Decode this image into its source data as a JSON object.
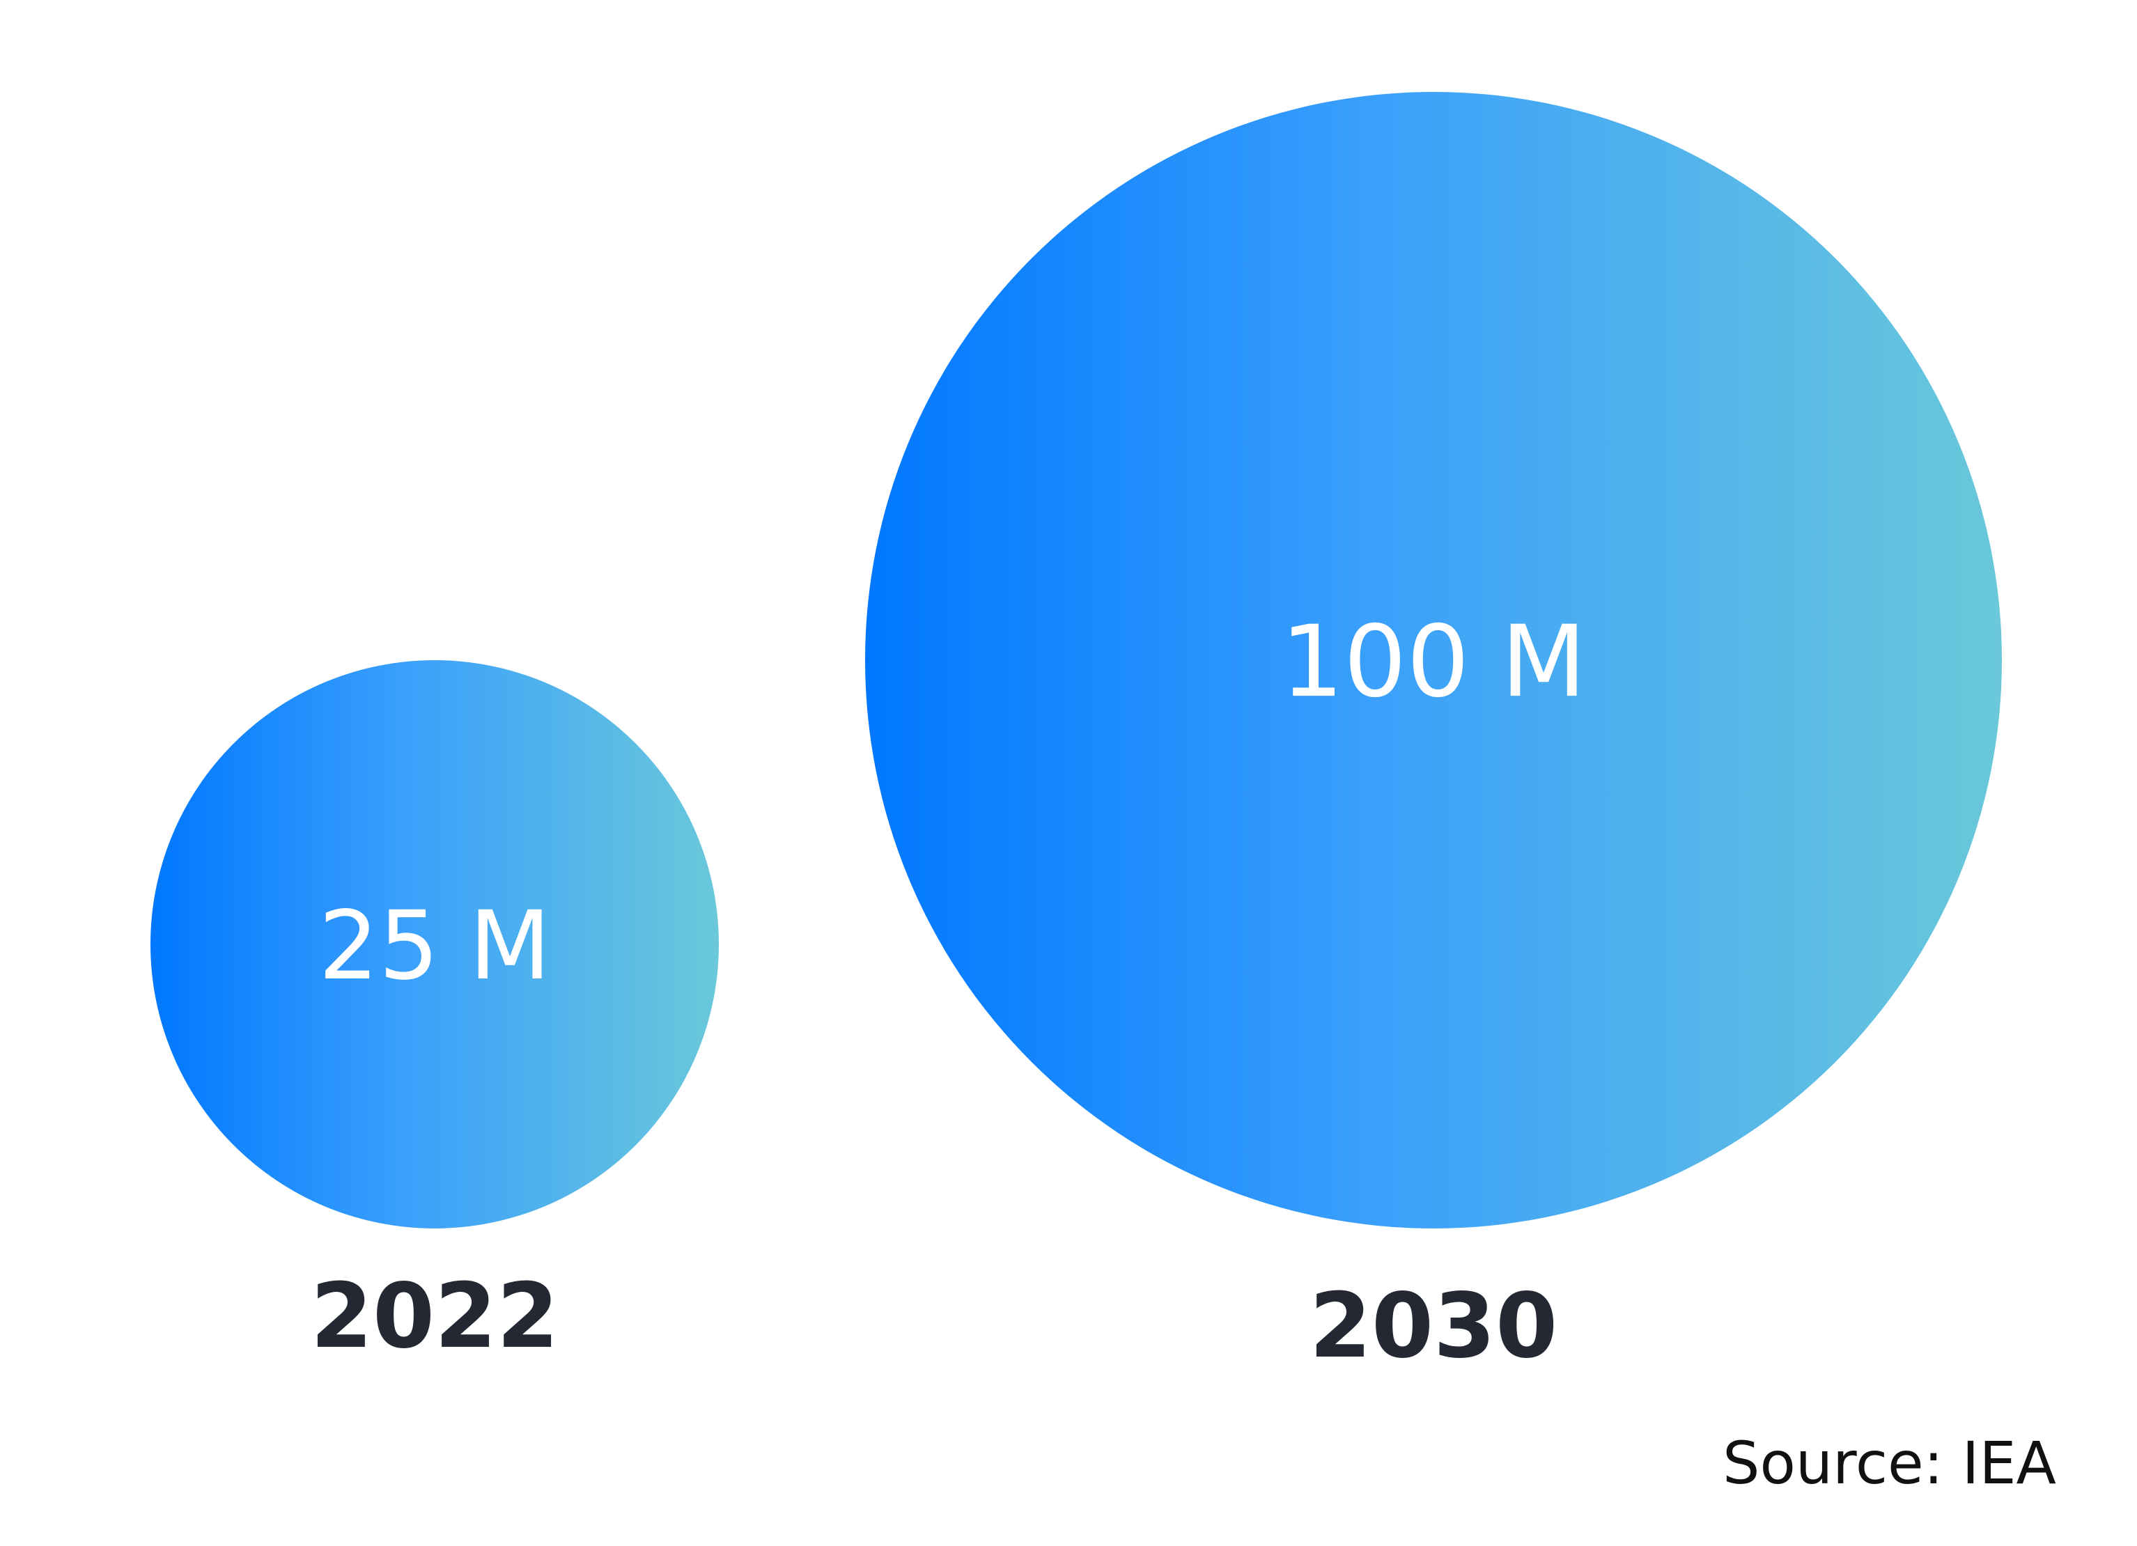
{
  "chart_data": {
    "type": "bubble",
    "title": "",
    "categories": [
      "2022",
      "2030"
    ],
    "values": [
      25,
      100
    ],
    "value_labels": [
      "25 M",
      "100 M"
    ],
    "unit": "M",
    "gradient_colors": [
      "#0077ff",
      "#6ac8da"
    ],
    "year_label_color": "#232833",
    "value_label_color": "#ffffff"
  },
  "source": "Source: IEA"
}
